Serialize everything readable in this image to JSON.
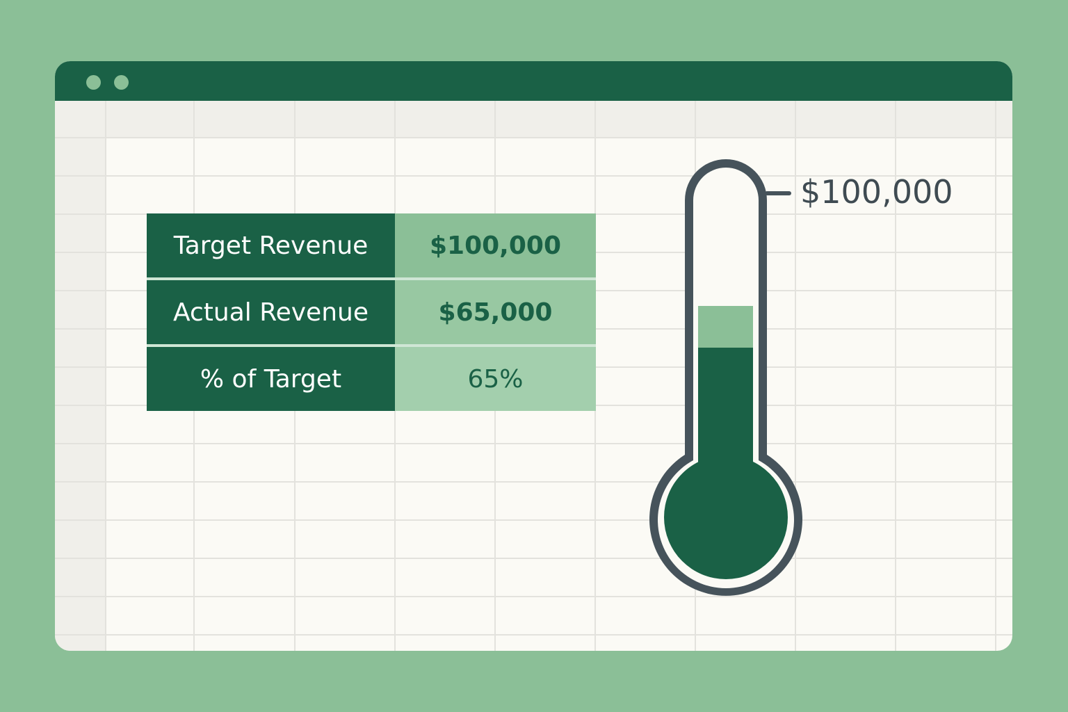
{
  "window": {
    "title_dots": [
      "dot",
      "dot"
    ]
  },
  "summary": {
    "rows": [
      {
        "label": "Target Revenue",
        "value": "$100,000"
      },
      {
        "label": "Actual Revenue",
        "value": "$65,000"
      },
      {
        "label": "% of Target",
        "value": "65%"
      }
    ]
  },
  "thermometer": {
    "target_label": "$100,000",
    "target": 100000,
    "actual": 65000,
    "fill_fraction": 0.65,
    "colors": {
      "outline": "#46535b",
      "fill": "#1a6146",
      "highlight": "#8bbf97",
      "background": "#fbfaf5"
    }
  },
  "colors": {
    "background": "#8bbf97",
    "brand_dark": "#1a6146",
    "sheet": "#fbfaf5",
    "header_row": "#f0efea",
    "gridline": "#e3e2dd"
  }
}
